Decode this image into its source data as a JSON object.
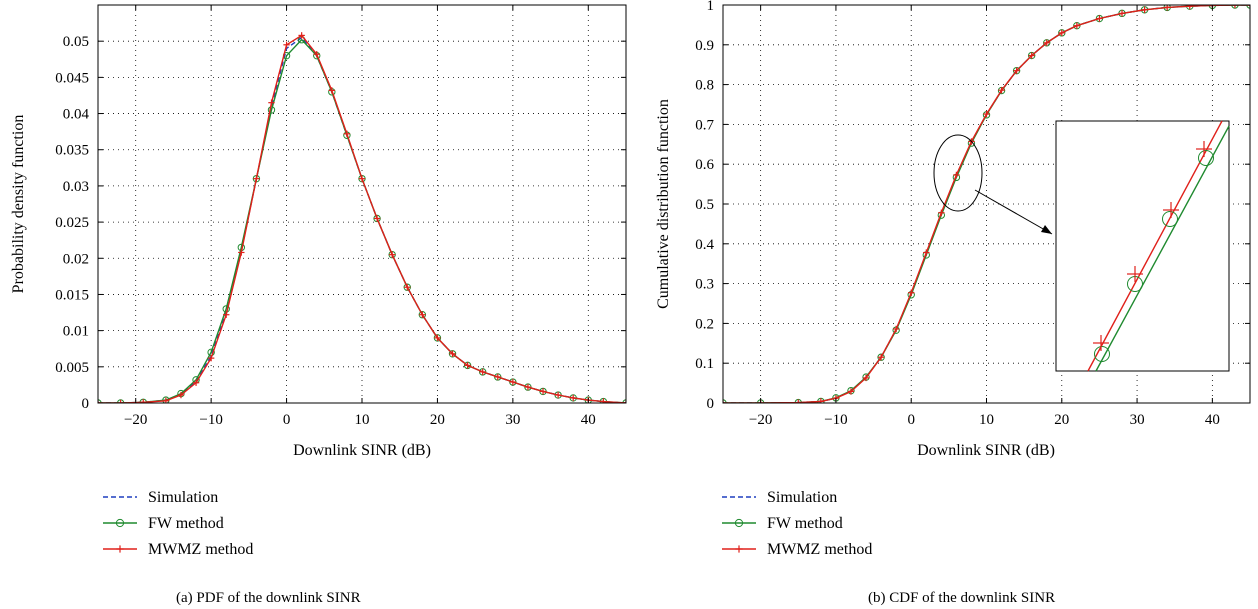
{
  "chart_data": [
    {
      "type": "line",
      "caption": "(a)  PDF of the downlink SINR",
      "xlabel": "Downlink SINR (dB)",
      "ylabel": "Probability density function",
      "xlim": [
        -25,
        45
      ],
      "ylim": [
        0,
        0.055
      ],
      "xticks": [
        -20,
        -10,
        0,
        10,
        20,
        30,
        40
      ],
      "xtick_labels": [
        "−20",
        "−10",
        "0",
        "10",
        "20",
        "30",
        "40"
      ],
      "yticks": [
        0,
        0.005,
        0.01,
        0.015,
        0.02,
        0.025,
        0.03,
        0.035,
        0.04,
        0.045,
        0.05
      ],
      "ytick_labels": [
        "0",
        "0.005",
        "0.01",
        "0.015",
        "0.02",
        "0.025",
        "0.03",
        "0.035",
        "0.04",
        "0.045",
        "0.05"
      ],
      "grid": true,
      "legend_position": "below-left",
      "x": [
        -25,
        -22,
        -19,
        -16,
        -14,
        -12,
        -10,
        -8,
        -6,
        -4,
        -2,
        0,
        2,
        4,
        6,
        8,
        10,
        12,
        14,
        16,
        18,
        20,
        22,
        24,
        26,
        28,
        30,
        32,
        34,
        36,
        38,
        40,
        42,
        45
      ],
      "series": [
        {
          "name": "Simulation",
          "color": "#1f3fbf",
          "style": "dashed",
          "marker": "none",
          "values": [
            0,
            0,
            0.0001,
            0.0004,
            0.0012,
            0.003,
            0.0065,
            0.0125,
            0.021,
            0.031,
            0.041,
            0.049,
            0.0505,
            0.048,
            0.043,
            0.037,
            0.031,
            0.0255,
            0.0205,
            0.016,
            0.0122,
            0.009,
            0.0068,
            0.0052,
            0.0043,
            0.0036,
            0.0029,
            0.0022,
            0.0016,
            0.0011,
            0.0007,
            0.0004,
            0.0002,
            0
          ]
        },
        {
          "name": "FW method",
          "color": "#1f8a2f",
          "style": "solid",
          "marker": "circle",
          "values": [
            0,
            0,
            0.0001,
            0.0004,
            0.0013,
            0.0032,
            0.007,
            0.013,
            0.0215,
            0.031,
            0.0405,
            0.048,
            0.0502,
            0.048,
            0.043,
            0.037,
            0.031,
            0.0255,
            0.0205,
            0.016,
            0.0122,
            0.009,
            0.0068,
            0.0052,
            0.0043,
            0.0036,
            0.0029,
            0.0022,
            0.0016,
            0.0011,
            0.0007,
            0.0004,
            0.0002,
            0
          ]
        },
        {
          "name": "MWMZ method",
          "color": "#e0201a",
          "style": "solid",
          "marker": "plus",
          "values": [
            0,
            0,
            0.0001,
            0.0003,
            0.0011,
            0.0028,
            0.0062,
            0.0122,
            0.0208,
            0.031,
            0.0415,
            0.0495,
            0.0508,
            0.0482,
            0.0432,
            0.0372,
            0.031,
            0.0255,
            0.0205,
            0.016,
            0.0122,
            0.009,
            0.0068,
            0.0052,
            0.0043,
            0.0036,
            0.0029,
            0.0022,
            0.0016,
            0.0011,
            0.0007,
            0.0004,
            0.0002,
            0
          ]
        }
      ]
    },
    {
      "type": "line",
      "caption": "(b)  CDF of the downlink SINR",
      "xlabel": "Downlink SINR (dB)",
      "ylabel": "Cumulative distribution function",
      "xlim": [
        -25,
        45
      ],
      "ylim": [
        0,
        1
      ],
      "xticks": [
        -20,
        -10,
        0,
        10,
        20,
        30,
        40
      ],
      "xtick_labels": [
        "−20",
        "−10",
        "0",
        "10",
        "20",
        "30",
        "40"
      ],
      "yticks": [
        0,
        0.1,
        0.2,
        0.3,
        0.4,
        0.5,
        0.6,
        0.7,
        0.8,
        0.9,
        1
      ],
      "ytick_labels": [
        "0",
        "0.1",
        "0.2",
        "0.3",
        "0.4",
        "0.5",
        "0.6",
        "0.7",
        "0.8",
        "0.9",
        "1"
      ],
      "grid": true,
      "legend_position": "below-left",
      "inset": "zoom around x ≈ 6, y ≈ 0.6",
      "x": [
        -25,
        -20,
        -15,
        -12,
        -10,
        -8,
        -6,
        -4,
        -2,
        0,
        2,
        4,
        6,
        8,
        10,
        12,
        14,
        16,
        18,
        20,
        22,
        25,
        28,
        31,
        34,
        37,
        40,
        43,
        45
      ],
      "series": [
        {
          "name": "Simulation",
          "color": "#1f3fbf",
          "style": "dashed",
          "marker": "none",
          "values": [
            0,
            0,
            0.001,
            0.004,
            0.012,
            0.03,
            0.064,
            0.115,
            0.185,
            0.275,
            0.375,
            0.475,
            0.57,
            0.655,
            0.725,
            0.785,
            0.835,
            0.873,
            0.905,
            0.93,
            0.948,
            0.966,
            0.979,
            0.988,
            0.994,
            0.997,
            0.999,
            1,
            1
          ]
        },
        {
          "name": "FW method",
          "color": "#1f8a2f",
          "style": "solid",
          "marker": "circle",
          "values": [
            0,
            0,
            0.001,
            0.004,
            0.013,
            0.031,
            0.065,
            0.115,
            0.183,
            0.272,
            0.372,
            0.472,
            0.567,
            0.653,
            0.724,
            0.785,
            0.835,
            0.873,
            0.905,
            0.93,
            0.948,
            0.966,
            0.979,
            0.988,
            0.994,
            0.997,
            0.999,
            1,
            1
          ]
        },
        {
          "name": "MWMZ method",
          "color": "#e0201a",
          "style": "solid",
          "marker": "plus",
          "values": [
            0,
            0,
            0.001,
            0.004,
            0.012,
            0.029,
            0.063,
            0.115,
            0.186,
            0.277,
            0.378,
            0.478,
            0.573,
            0.657,
            0.726,
            0.786,
            0.835,
            0.873,
            0.905,
            0.93,
            0.948,
            0.966,
            0.979,
            0.988,
            0.994,
            0.997,
            0.999,
            1,
            1
          ]
        }
      ]
    }
  ]
}
